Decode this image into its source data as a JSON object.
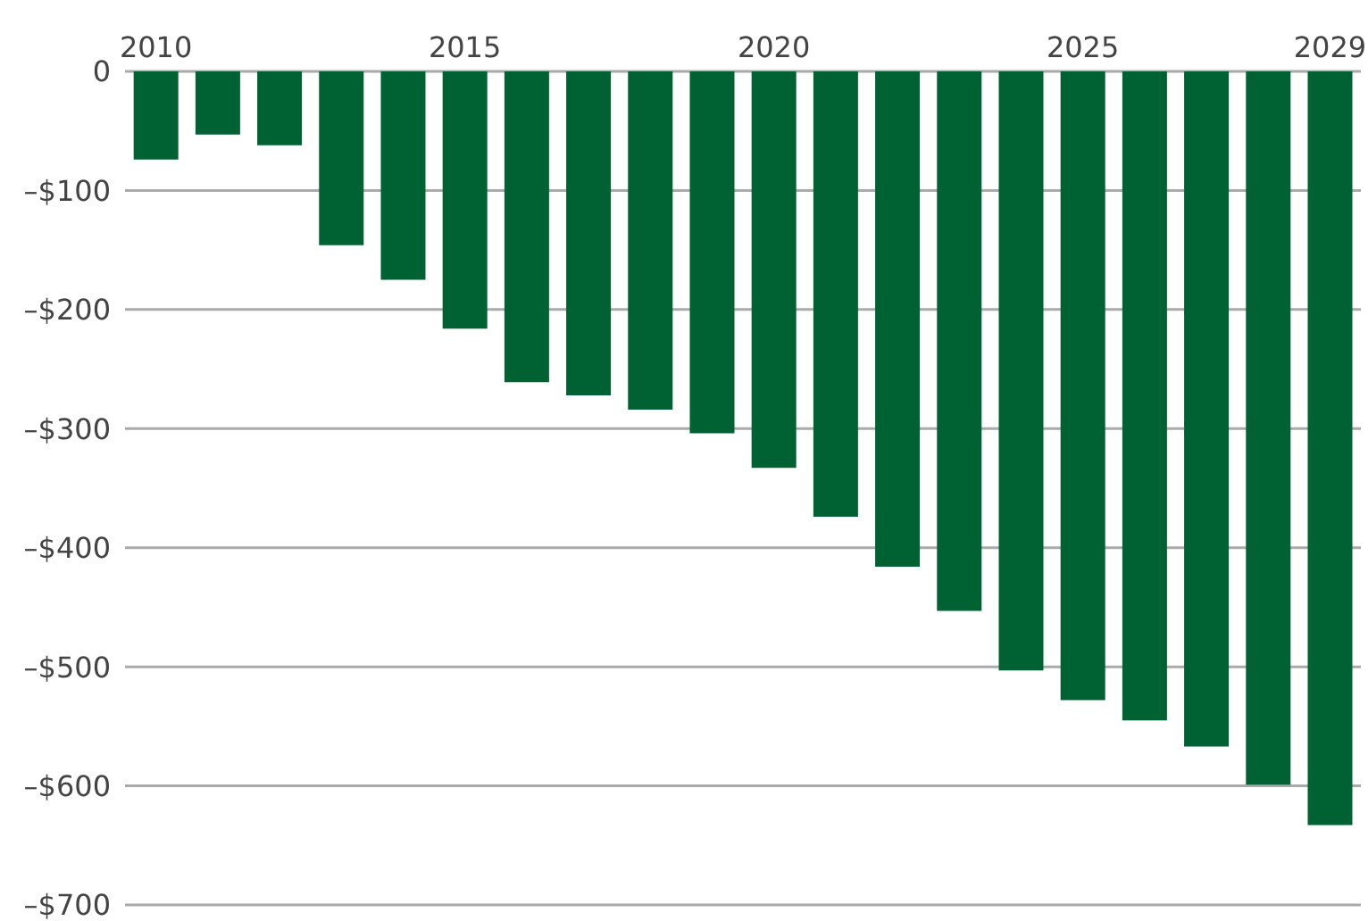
{
  "chart_data": {
    "type": "bar",
    "categories": [
      "2010",
      null,
      null,
      null,
      null,
      "2015",
      null,
      null,
      null,
      null,
      "2020",
      null,
      null,
      null,
      null,
      "2025",
      null,
      null,
      null,
      "2029"
    ],
    "values": [
      -74,
      -53,
      -62,
      -146,
      -175,
      -216,
      -261,
      -272,
      -284,
      -304,
      -333,
      -374,
      -416,
      -453,
      -503,
      -528,
      -545,
      -567,
      -599,
      -633
    ],
    "color": "#006233",
    "ylim": [
      -700,
      0
    ],
    "yticks": [
      {
        "value": 0,
        "label": "0"
      },
      {
        "value": -100,
        "label": "–$100"
      },
      {
        "value": -200,
        "label": "–$200"
      },
      {
        "value": -300,
        "label": "–$300"
      },
      {
        "value": -400,
        "label": "–$400"
      },
      {
        "value": -500,
        "label": "–$500"
      },
      {
        "value": -600,
        "label": "–$600"
      },
      {
        "value": -700,
        "label": "–$700"
      }
    ],
    "grid": "y"
  }
}
